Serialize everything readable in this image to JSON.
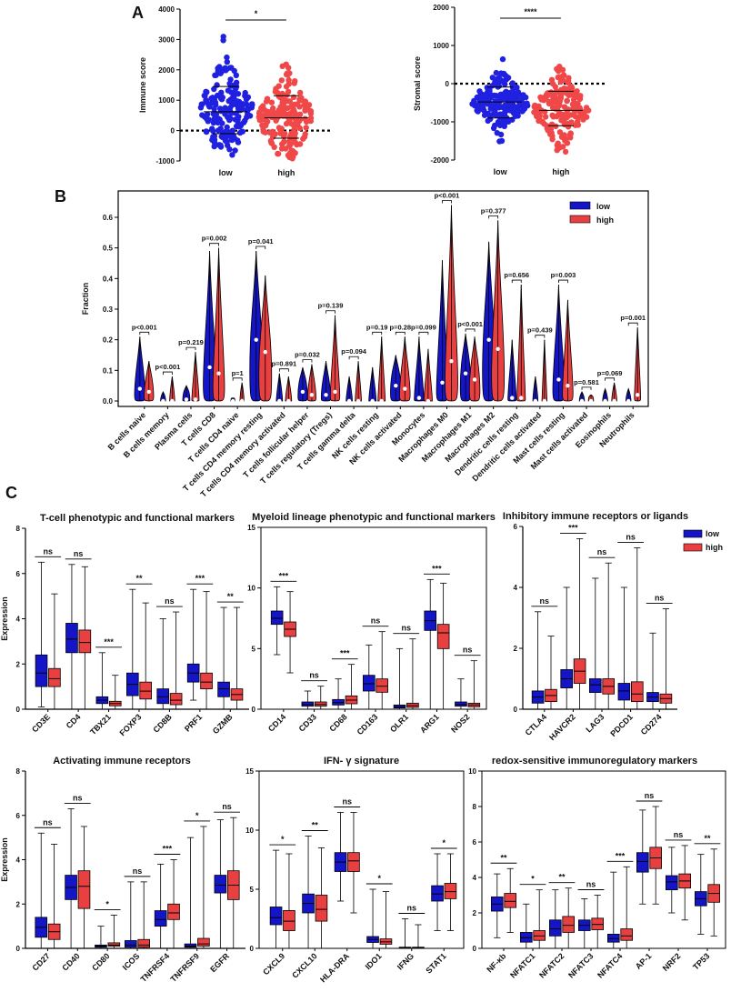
{
  "colors": {
    "low": "#1515c8",
    "high": "#e84040",
    "low_scatter": "#2020e0",
    "high_scatter": "#f04848"
  },
  "panels": {
    "a": "A",
    "b": "B",
    "c": "C"
  },
  "legend": {
    "low": "low",
    "high": "high"
  },
  "chart_data": [
    {
      "id": "A1",
      "type": "scatter",
      "ylabel": "Immune score",
      "ylim": [
        -1000,
        4000
      ],
      "yticks": [
        "-1000",
        "0",
        "1000",
        "2000",
        "3000",
        "4000"
      ],
      "categories": [
        "low",
        "high"
      ],
      "significance": "*",
      "summary": [
        {
          "group": "low",
          "mean": 620,
          "sd_upper": 1450,
          "sd_lower": -100,
          "min": -800,
          "max": 3150
        },
        {
          "group": "high",
          "mean": 420,
          "sd_upper": 1150,
          "sd_lower": -250,
          "min": -950,
          "max": 2900
        }
      ]
    },
    {
      "id": "A2",
      "type": "scatter",
      "ylabel": "Stromal score",
      "ylim": [
        -2000,
        2000
      ],
      "yticks": [
        "-2000",
        "-1000",
        "0",
        "1000",
        "2000"
      ],
      "categories": [
        "low",
        "high"
      ],
      "significance": "****",
      "summary": [
        {
          "group": "low",
          "mean": -480,
          "sd_upper": -90,
          "sd_lower": -900,
          "min": -1550,
          "max": 1050
        },
        {
          "group": "high",
          "mean": -700,
          "sd_upper": -200,
          "sd_lower": -1100,
          "min": -1800,
          "max": 1200
        }
      ]
    },
    {
      "id": "B",
      "type": "violin",
      "ylabel": "Fraction",
      "ylim": [
        0,
        0.6
      ],
      "yticks": [
        "0.0",
        "0.1",
        "0.2",
        "0.3",
        "0.4",
        "0.5",
        "0.6"
      ],
      "series": [
        {
          "name": "low"
        },
        {
          "name": "high"
        }
      ],
      "categories": [
        "B cells naive",
        "B cells memory",
        "Plasma cells",
        "T cells CD8",
        "T cells CD4 naive",
        "T cells CD4 memory resting",
        "T cells CD4 memory activated",
        "T cells follicular helper",
        "T cells regulatory (Tregs)",
        "T cells gamma delta",
        "NK cells resting",
        "NK cells activated",
        "Monocytes",
        "Macrophages M0",
        "Macrophages M1",
        "Macrophages M2",
        "Dendritic cells resting",
        "Dendritic cells activated",
        "Mast cells resting",
        "Mast cells activated",
        "Eosinophils",
        "Neutrophils"
      ],
      "pvalues": [
        "p<0.001",
        "p<0.001",
        "p=0.219",
        "p=0.002",
        "p=1",
        "p=0.041",
        "p=0.891",
        "p=0.032",
        "p=0.139",
        "p=0.094",
        "p=0.19",
        "p=0.28",
        "p=0.099",
        "p<0.001",
        "p<0.001",
        "p=0.377",
        "p=0.656",
        "p=0.439",
        "p=0.003",
        "p=0.581",
        "p=0.069",
        "p=0.001"
      ],
      "low": [
        {
          "med": 0.04,
          "max": 0.21,
          "w": 0.8
        },
        {
          "med": 0.0,
          "max": 0.03,
          "w": 0.3
        },
        {
          "med": 0.005,
          "max": 0.05,
          "w": 0.5
        },
        {
          "med": 0.11,
          "max": 0.49,
          "w": 1.0
        },
        {
          "med": 0.0,
          "max": 0.01,
          "w": 0.2
        },
        {
          "med": 0.2,
          "max": 0.49,
          "w": 1.0
        },
        {
          "med": 0.0,
          "max": 0.09,
          "w": 0.4
        },
        {
          "med": 0.03,
          "max": 0.11,
          "w": 0.7
        },
        {
          "med": 0.02,
          "max": 0.13,
          "w": 0.7
        },
        {
          "med": 0.0,
          "max": 0.08,
          "w": 0.4
        },
        {
          "med": 0.0,
          "max": 0.11,
          "w": 0.5
        },
        {
          "med": 0.05,
          "max": 0.15,
          "w": 0.8
        },
        {
          "med": 0.01,
          "max": 0.21,
          "w": 0.7
        },
        {
          "med": 0.06,
          "max": 0.46,
          "w": 0.9
        },
        {
          "med": 0.09,
          "max": 0.22,
          "w": 0.8
        },
        {
          "med": 0.2,
          "max": 0.52,
          "w": 1.0
        },
        {
          "med": 0.01,
          "max": 0.2,
          "w": 0.6
        },
        {
          "med": 0.0,
          "max": 0.08,
          "w": 0.3
        },
        {
          "med": 0.07,
          "max": 0.38,
          "w": 0.9
        },
        {
          "med": 0.0,
          "max": 0.03,
          "w": 0.3
        },
        {
          "med": 0.0,
          "max": 0.04,
          "w": 0.3
        },
        {
          "med": 0.0,
          "max": 0.04,
          "w": 0.3
        }
      ],
      "high": [
        {
          "med": 0.03,
          "max": 0.13,
          "w": 0.7
        },
        {
          "med": 0.0,
          "max": 0.08,
          "w": 0.3
        },
        {
          "med": 0.005,
          "max": 0.16,
          "w": 0.5
        },
        {
          "med": 0.09,
          "max": 0.5,
          "w": 0.9
        },
        {
          "med": 0.0,
          "max": 0.06,
          "w": 0.2
        },
        {
          "med": 0.16,
          "max": 0.41,
          "w": 1.0
        },
        {
          "med": 0.0,
          "max": 0.08,
          "w": 0.4
        },
        {
          "med": 0.02,
          "max": 0.12,
          "w": 0.6
        },
        {
          "med": 0.03,
          "max": 0.28,
          "w": 0.7
        },
        {
          "med": 0.0,
          "max": 0.13,
          "w": 0.4
        },
        {
          "med": 0.0,
          "max": 0.21,
          "w": 0.5
        },
        {
          "med": 0.04,
          "max": 0.21,
          "w": 0.8
        },
        {
          "med": 0.0,
          "max": 0.17,
          "w": 0.6
        },
        {
          "med": 0.13,
          "max": 0.64,
          "w": 1.0
        },
        {
          "med": 0.07,
          "max": 0.21,
          "w": 0.8
        },
        {
          "med": 0.17,
          "max": 0.59,
          "w": 1.0
        },
        {
          "med": 0.01,
          "max": 0.38,
          "w": 0.6
        },
        {
          "med": 0.0,
          "max": 0.2,
          "w": 0.3
        },
        {
          "med": 0.05,
          "max": 0.33,
          "w": 0.8
        },
        {
          "med": 0.0,
          "max": 0.02,
          "w": 0.3
        },
        {
          "med": 0.0,
          "max": 0.06,
          "w": 0.3
        },
        {
          "med": 0.02,
          "max": 0.24,
          "w": 0.4
        }
      ]
    },
    {
      "id": "C1",
      "type": "box",
      "title": "T-cell phenotypic and functional markers",
      "ylabel": "Expression",
      "ylim": [
        0,
        8
      ],
      "yticks": [
        "0",
        "2",
        "4",
        "6",
        "8"
      ],
      "categories": [
        "CD3E",
        "CD4",
        "TBX21",
        "FOXP3",
        "CD8B",
        "PRF1",
        "GZMB"
      ],
      "sig": [
        "ns",
        "ns",
        "***",
        "**",
        "ns",
        "***",
        "**"
      ],
      "low": [
        [
          0.1,
          1.0,
          1.6,
          2.4,
          6.5
        ],
        [
          0.0,
          2.5,
          3.1,
          3.8,
          6.4
        ],
        [
          0.0,
          0.25,
          0.4,
          0.55,
          2.5
        ],
        [
          0.0,
          0.6,
          1.1,
          1.6,
          5.3
        ],
        [
          0.0,
          0.25,
          0.55,
          0.9,
          4.0
        ],
        [
          0.4,
          1.2,
          1.6,
          2.0,
          5.3
        ],
        [
          0.0,
          0.55,
          0.9,
          1.2,
          4.5
        ]
      ],
      "high": [
        [
          0.0,
          1.0,
          1.35,
          1.8,
          5.1
        ],
        [
          0.0,
          2.5,
          2.95,
          3.5,
          6.3
        ],
        [
          0.0,
          0.15,
          0.25,
          0.35,
          1.5
        ],
        [
          0.0,
          0.45,
          0.8,
          1.2,
          4.7
        ],
        [
          0.0,
          0.2,
          0.4,
          0.7,
          4.3
        ],
        [
          0.0,
          0.9,
          1.2,
          1.6,
          5.2
        ],
        [
          0.0,
          0.4,
          0.65,
          0.9,
          4.5
        ]
      ]
    },
    {
      "id": "C2",
      "type": "box",
      "title": "Myeloid lineage phenotypic and functional markers",
      "ylabel": "",
      "ylim": [
        0,
        15
      ],
      "yticks": [
        "0",
        "5",
        "10",
        "15"
      ],
      "categories": [
        "CD14",
        "CD33",
        "CD68",
        "CD163",
        "OLR1",
        "ARG1",
        "NOS2"
      ],
      "sig": [
        "***",
        "ns",
        "***",
        "ns",
        "ns",
        "***",
        "ns"
      ],
      "low": [
        [
          4.5,
          7.0,
          7.5,
          8.1,
          10.1
        ],
        [
          0.0,
          0.25,
          0.4,
          0.6,
          1.5
        ],
        [
          0.0,
          0.35,
          0.55,
          0.8,
          2.5
        ],
        [
          0.0,
          1.5,
          2.1,
          2.8,
          5.3
        ],
        [
          0.0,
          0.1,
          0.2,
          0.35,
          5.0
        ],
        [
          0.0,
          6.5,
          7.3,
          8.1,
          10.7
        ],
        [
          0.0,
          0.25,
          0.4,
          0.6,
          2.5
        ]
      ],
      "high": [
        [
          3.0,
          6.0,
          6.6,
          7.2,
          9.7
        ],
        [
          0.0,
          0.25,
          0.4,
          0.6,
          1.9
        ],
        [
          0.0,
          0.45,
          0.75,
          1.1,
          3.7
        ],
        [
          0.0,
          1.4,
          1.9,
          2.5,
          6.4
        ],
        [
          0.0,
          0.15,
          0.3,
          0.5,
          5.8
        ],
        [
          0.0,
          5.0,
          6.3,
          7.0,
          10.4
        ],
        [
          0.0,
          0.2,
          0.35,
          0.5,
          4.0
        ]
      ]
    },
    {
      "id": "C3",
      "type": "box",
      "title": "Inhibitory immune receptors or ligands",
      "ylabel": "",
      "ylim": [
        0,
        6
      ],
      "yticks": [
        "0",
        "2",
        "4",
        "6"
      ],
      "categories": [
        "CTLA4",
        "HAVCR2",
        "LAG3",
        "PDCD1",
        "CD274"
      ],
      "sig": [
        "ns",
        "***",
        "ns",
        "ns",
        "ns"
      ],
      "low": [
        [
          0.0,
          0.2,
          0.4,
          0.6,
          3.2
        ],
        [
          0.0,
          0.7,
          1.0,
          1.3,
          4.0
        ],
        [
          0.0,
          0.55,
          0.8,
          1.0,
          4.3
        ],
        [
          0.0,
          0.3,
          0.6,
          0.85,
          4.0
        ],
        [
          0.0,
          0.25,
          0.4,
          0.55,
          2.5
        ]
      ],
      "high": [
        [
          0.0,
          0.25,
          0.45,
          0.65,
          2.4
        ],
        [
          0.0,
          0.85,
          1.25,
          1.65,
          5.6
        ],
        [
          0.0,
          0.5,
          0.75,
          1.0,
          4.8
        ],
        [
          0.0,
          0.25,
          0.5,
          0.9,
          5.3
        ],
        [
          0.0,
          0.2,
          0.35,
          0.5,
          3.3
        ]
      ]
    },
    {
      "id": "C4",
      "type": "box",
      "title": "Activating immune receptors",
      "ylabel": "Expression",
      "ylim": [
        0,
        8
      ],
      "yticks": [
        "0",
        "2",
        "4",
        "6",
        "8"
      ],
      "categories": [
        "CD27",
        "CD40",
        "CD80",
        "ICOS",
        "TNFRSF4",
        "TNFRSF9",
        "EGFR"
      ],
      "sig": [
        "ns",
        "ns",
        "*",
        "ns",
        "***",
        "*",
        "ns"
      ],
      "low": [
        [
          0.0,
          0.5,
          0.95,
          1.4,
          5.2
        ],
        [
          0.0,
          2.2,
          2.75,
          3.3,
          6.3
        ],
        [
          0.0,
          0.05,
          0.1,
          0.15,
          1.0
        ],
        [
          0.0,
          0.05,
          0.15,
          0.35,
          3.0
        ],
        [
          0.0,
          1.0,
          1.3,
          1.7,
          3.8
        ],
        [
          0.0,
          0.05,
          0.1,
          0.2,
          5.0
        ],
        [
          0.0,
          2.5,
          2.85,
          3.3,
          5.8
        ]
      ],
      "high": [
        [
          0.0,
          0.4,
          0.75,
          1.1,
          4.7
        ],
        [
          0.0,
          1.8,
          2.8,
          3.5,
          5.5
        ],
        [
          0.0,
          0.1,
          0.15,
          0.25,
          1.5
        ],
        [
          0.0,
          0.05,
          0.15,
          0.4,
          3.0
        ],
        [
          0.0,
          1.3,
          1.6,
          2.0,
          4.0
        ],
        [
          0.0,
          0.1,
          0.2,
          0.45,
          5.5
        ],
        [
          0.0,
          2.2,
          2.85,
          3.5,
          5.9
        ]
      ]
    },
    {
      "id": "C5",
      "type": "box",
      "title": "IFN- γ  signature",
      "ylabel": "",
      "ylim": [
        0,
        15
      ],
      "yticks": [
        "0",
        "5",
        "10",
        "15"
      ],
      "categories": [
        "CXCL9",
        "CXCL10",
        "HLA-DRA",
        "IDO1",
        "IFNG",
        "STAT1"
      ],
      "sig": [
        "*",
        "**",
        "ns",
        "*",
        "ns",
        "*"
      ],
      "low": [
        [
          0.0,
          2.0,
          2.6,
          3.5,
          8.3
        ],
        [
          0.0,
          3.0,
          3.8,
          4.6,
          9.5
        ],
        [
          4.0,
          6.5,
          7.3,
          8.1,
          11.5
        ],
        [
          0.0,
          0.5,
          0.75,
          1.0,
          5.0
        ],
        [
          0.0,
          0.0,
          0.05,
          0.1,
          2.5
        ],
        [
          1.5,
          4.0,
          4.6,
          5.3,
          8.0
        ]
      ],
      "high": [
        [
          0.0,
          1.5,
          2.3,
          3.2,
          8.0
        ],
        [
          0.0,
          2.3,
          3.3,
          4.5,
          8.5
        ],
        [
          3.0,
          6.5,
          7.4,
          8.1,
          11.5
        ],
        [
          0.0,
          0.35,
          0.55,
          0.8,
          4.8
        ],
        [
          0.0,
          0.0,
          0.05,
          0.1,
          2.0
        ],
        [
          1.5,
          4.2,
          4.8,
          5.5,
          8.0
        ]
      ]
    },
    {
      "id": "C6",
      "type": "box",
      "title": "redox-sensitive immunoregulatory markers",
      "ylabel": "",
      "ylim": [
        0,
        10
      ],
      "yticks": [
        "0",
        "2",
        "4",
        "6",
        "8",
        "10"
      ],
      "categories": [
        "NF-κb",
        "NFATC1",
        "NFATC2",
        "NFATC3",
        "NFATC4",
        "AP-1",
        "NRF2",
        "TP53"
      ],
      "sig": [
        "**",
        "*",
        "**",
        "ns",
        "***",
        "ns",
        "ns",
        "**"
      ],
      "low": [
        [
          0.6,
          2.1,
          2.5,
          2.9,
          4.2
        ],
        [
          0.0,
          0.35,
          0.6,
          0.9,
          2.5
        ],
        [
          0.0,
          0.7,
          1.1,
          1.6,
          3.3
        ],
        [
          0.0,
          1.0,
          1.3,
          1.6,
          2.8
        ],
        [
          0.0,
          0.35,
          0.55,
          0.8,
          4.3
        ],
        [
          2.5,
          4.3,
          4.9,
          5.4,
          7.8
        ],
        [
          2.0,
          3.3,
          3.75,
          4.1,
          5.7
        ],
        [
          0.8,
          2.4,
          2.8,
          3.2,
          5.3
        ]
      ],
      "high": [
        [
          0.9,
          2.3,
          2.65,
          3.1,
          4.5
        ],
        [
          0.0,
          0.45,
          0.7,
          1.0,
          3.3
        ],
        [
          0.0,
          0.9,
          1.3,
          1.8,
          3.4
        ],
        [
          0.0,
          1.05,
          1.35,
          1.7,
          3.0
        ],
        [
          0.0,
          0.45,
          0.7,
          1.1,
          4.6
        ],
        [
          2.5,
          4.5,
          5.1,
          5.7,
          8.0
        ],
        [
          1.6,
          3.4,
          3.8,
          4.2,
          5.8
        ],
        [
          0.7,
          2.6,
          3.1,
          3.6,
          5.6
        ]
      ]
    }
  ]
}
